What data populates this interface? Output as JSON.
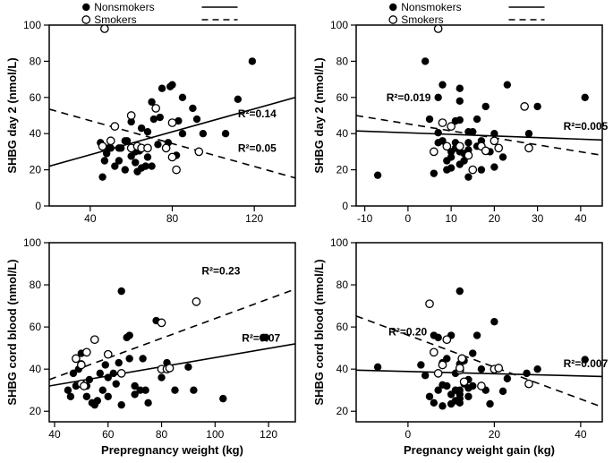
{
  "legend": {
    "nonsmokers_label": "Nonsmokers",
    "smokers_label": "Smokers",
    "nonsmokers_marker": "filled-circle",
    "smokers_marker": "open-circle",
    "nonsmokers_line": "solid",
    "smokers_line": "dashed"
  },
  "marker_size": 4.2,
  "colors": {
    "background": "#ffffff",
    "axis": "#000000",
    "filled": "#000000",
    "open_stroke": "#000000",
    "open_fill": "#ffffff",
    "solid_line": "#000000",
    "dashed_line": "#000000",
    "text": "#000000"
  },
  "panels": {
    "top_left": {
      "xlabel": "Prepregnancy weight (kg)",
      "ylabel": "SHBG day 2 (nmol/L)",
      "xlim": [
        20,
        140
      ],
      "xticks": [
        40,
        80,
        120
      ],
      "ylim": [
        0,
        100
      ],
      "yticks": [
        0,
        20,
        40,
        60,
        80,
        100
      ],
      "r2_solid": "R²=0.14",
      "r2_solid_pos": [
        112,
        49
      ],
      "r2_dashed": "R²=0.05",
      "r2_dashed_pos": [
        112,
        30
      ],
      "line_solid": {
        "x1": 20,
        "y1": 22,
        "x2": 140,
        "y2": 60
      },
      "line_dashed": {
        "x1": 20,
        "y1": 53.5,
        "x2": 140,
        "y2": 15.5
      },
      "nonsmokers": [
        [
          45,
          35
        ],
        [
          46,
          16
        ],
        [
          47,
          25
        ],
        [
          48,
          29
        ],
        [
          49,
          32
        ],
        [
          50,
          32
        ],
        [
          52,
          22
        ],
        [
          54,
          25
        ],
        [
          54,
          32
        ],
        [
          55,
          32
        ],
        [
          57,
          20
        ],
        [
          57,
          36
        ],
        [
          58,
          36
        ],
        [
          60,
          27.5
        ],
        [
          60,
          46.5
        ],
        [
          62,
          24
        ],
        [
          62,
          30
        ],
        [
          63,
          19
        ],
        [
          64,
          30.5
        ],
        [
          65,
          43
        ],
        [
          65,
          21
        ],
        [
          67,
          22
        ],
        [
          68,
          41
        ],
        [
          68,
          27
        ],
        [
          70,
          22
        ],
        [
          70,
          57.5
        ],
        [
          71,
          48
        ],
        [
          73,
          34
        ],
        [
          74,
          49
        ],
        [
          75,
          65
        ],
        [
          78,
          35
        ],
        [
          79,
          66
        ],
        [
          80,
          67
        ],
        [
          82,
          28
        ],
        [
          83,
          47
        ],
        [
          85,
          40
        ],
        [
          85,
          60
        ],
        [
          90,
          54
        ],
        [
          92,
          48
        ],
        [
          95,
          40
        ],
        [
          106,
          40
        ],
        [
          112,
          59
        ],
        [
          119,
          80
        ]
      ],
      "smokers": [
        [
          46,
          33
        ],
        [
          47,
          98
        ],
        [
          50,
          36
        ],
        [
          52,
          44
        ],
        [
          60,
          32
        ],
        [
          60,
          50
        ],
        [
          63,
          33
        ],
        [
          65,
          32
        ],
        [
          68,
          32
        ],
        [
          72,
          54
        ],
        [
          77,
          32
        ],
        [
          80,
          27
        ],
        [
          80,
          46
        ],
        [
          82,
          20
        ],
        [
          93,
          30
        ]
      ]
    },
    "top_right": {
      "xlabel": "Pregnancy weight gain (kg)",
      "ylabel": "SHBG day 2 (nmol/L)",
      "xlim": [
        -12,
        45
      ],
      "xticks": [
        -10,
        0,
        10,
        20,
        30,
        40
      ],
      "ylim": [
        0,
        100
      ],
      "yticks": [
        0,
        20,
        40,
        60,
        80,
        100
      ],
      "r2_solid": "R²=0.005",
      "r2_solid_pos": [
        36,
        42
      ],
      "r2_dashed": "R²=0.019",
      "r2_dashed_pos": [
        -5,
        58
      ],
      "line_solid": {
        "x1": -12,
        "y1": 41.5,
        "x2": 45,
        "y2": 36.5
      },
      "line_dashed": {
        "x1": -12,
        "y1": 50,
        "x2": 45,
        "y2": 28
      },
      "nonsmokers": [
        [
          -7,
          17
        ],
        [
          4,
          80
        ],
        [
          5,
          48
        ],
        [
          6,
          18
        ],
        [
          7,
          35
        ],
        [
          7,
          40.5
        ],
        [
          7,
          60
        ],
        [
          8,
          36
        ],
        [
          8,
          67
        ],
        [
          9,
          20
        ],
        [
          9,
          25
        ],
        [
          9,
          33
        ],
        [
          10,
          21
        ],
        [
          10,
          30
        ],
        [
          10,
          27
        ],
        [
          11,
          32
        ],
        [
          11,
          35
        ],
        [
          11,
          47
        ],
        [
          12,
          23
        ],
        [
          12,
          30
        ],
        [
          12,
          47.5
        ],
        [
          12,
          58
        ],
        [
          12,
          65
        ],
        [
          13,
          25
        ],
        [
          13,
          29
        ],
        [
          14,
          16
        ],
        [
          14,
          31
        ],
        [
          14,
          35
        ],
        [
          14,
          41
        ],
        [
          15,
          20
        ],
        [
          15,
          41
        ],
        [
          16,
          33
        ],
        [
          16,
          48
        ],
        [
          17,
          20
        ],
        [
          17,
          36
        ],
        [
          18,
          55
        ],
        [
          19,
          30
        ],
        [
          20,
          21.5
        ],
        [
          20,
          40
        ],
        [
          22,
          27
        ],
        [
          23,
          67
        ],
        [
          28,
          40
        ],
        [
          30,
          55
        ],
        [
          41,
          60
        ]
      ],
      "smokers": [
        [
          6,
          30
        ],
        [
          7,
          98
        ],
        [
          8,
          46
        ],
        [
          9,
          33
        ],
        [
          10,
          44
        ],
        [
          12,
          33
        ],
        [
          14,
          28
        ],
        [
          15,
          20
        ],
        [
          17,
          33
        ],
        [
          18,
          30.5
        ],
        [
          20,
          36
        ],
        [
          21,
          32
        ],
        [
          27,
          55
        ],
        [
          28,
          32
        ]
      ]
    },
    "bottom_left": {
      "xlabel": "Prepregnancy weight (kg)",
      "ylabel": "SHBG cord blood (nmol/L)",
      "xlim": [
        38,
        130
      ],
      "xticks": [
        40,
        60,
        80,
        100,
        120
      ],
      "ylim": [
        15,
        100
      ],
      "yticks": [
        20,
        40,
        60,
        80,
        100
      ],
      "r2_solid": "R²=0.07",
      "r2_solid_pos": [
        110,
        53
      ],
      "r2_dashed": "R²=0.23",
      "r2_dashed_pos": [
        95,
        85
      ],
      "line_solid": {
        "x1": 38,
        "y1": 32,
        "x2": 130,
        "y2": 52
      },
      "line_dashed": {
        "x1": 38,
        "y1": 35,
        "x2": 130,
        "y2": 78
      },
      "nonsmokers": [
        [
          45,
          30
        ],
        [
          46,
          27
        ],
        [
          47,
          38
        ],
        [
          48,
          32
        ],
        [
          49,
          40
        ],
        [
          50,
          47.5
        ],
        [
          50,
          42.5
        ],
        [
          52,
          27
        ],
        [
          52,
          32
        ],
        [
          53,
          35
        ],
        [
          54,
          24
        ],
        [
          55,
          23
        ],
        [
          56,
          25
        ],
        [
          57,
          38
        ],
        [
          58,
          30
        ],
        [
          59,
          42
        ],
        [
          60,
          27
        ],
        [
          60,
          36
        ],
        [
          62,
          38
        ],
        [
          63,
          33
        ],
        [
          64,
          43
        ],
        [
          65,
          23
        ],
        [
          65,
          77
        ],
        [
          67,
          55
        ],
        [
          68,
          56
        ],
        [
          68,
          45
        ],
        [
          70,
          28
        ],
        [
          70,
          32
        ],
        [
          72,
          30
        ],
        [
          73,
          45
        ],
        [
          74,
          30
        ],
        [
          75,
          24
        ],
        [
          78,
          63
        ],
        [
          80,
          36
        ],
        [
          82,
          43
        ],
        [
          85,
          30
        ],
        [
          90,
          41
        ],
        [
          92,
          30
        ],
        [
          103,
          26
        ],
        [
          118,
          55
        ],
        [
          119,
          55
        ]
      ],
      "smokers": [
        [
          48,
          45
        ],
        [
          50,
          33
        ],
        [
          50,
          42
        ],
        [
          51,
          32
        ],
        [
          52,
          48
        ],
        [
          55,
          54
        ],
        [
          60,
          47
        ],
        [
          65,
          38
        ],
        [
          80,
          40
        ],
        [
          80,
          62
        ],
        [
          82,
          40
        ],
        [
          83,
          40.5
        ],
        [
          93,
          72
        ]
      ]
    },
    "bottom_right": {
      "xlabel": "Pregnancy weight gain (kg)",
      "ylabel": "SHBG cord blood (nmol/L)",
      "xlim": [
        -12,
        45
      ],
      "xticks": [
        0,
        20,
        40
      ],
      "ylim": [
        15,
        100
      ],
      "yticks": [
        20,
        40,
        60,
        80,
        100
      ],
      "r2_solid": "R²=0.007",
      "r2_solid_pos": [
        36,
        41
      ],
      "r2_dashed": "R²=0.20",
      "r2_dashed_pos": [
        -4.5,
        56
      ],
      "line_solid": {
        "x1": -12,
        "y1": 39.5,
        "x2": 45,
        "y2": 36.5
      },
      "line_dashed": {
        "x1": -12,
        "y1": 65.2,
        "x2": 45,
        "y2": 22
      },
      "nonsmokers": [
        [
          -7,
          41
        ],
        [
          3,
          42
        ],
        [
          4,
          37
        ],
        [
          5,
          27
        ],
        [
          6,
          24
        ],
        [
          6,
          56
        ],
        [
          7,
          30
        ],
        [
          7,
          38
        ],
        [
          7,
          55
        ],
        [
          8,
          22.5
        ],
        [
          8,
          32.5
        ],
        [
          8,
          43
        ],
        [
          9,
          32
        ],
        [
          9,
          45
        ],
        [
          10,
          23.5
        ],
        [
          10,
          28
        ],
        [
          10,
          56
        ],
        [
          11,
          25
        ],
        [
          11,
          30
        ],
        [
          11,
          38
        ],
        [
          12,
          24
        ],
        [
          12,
          26
        ],
        [
          12,
          28
        ],
        [
          12,
          30
        ],
        [
          12,
          42.5
        ],
        [
          12,
          77
        ],
        [
          13,
          33
        ],
        [
          13,
          44
        ],
        [
          14,
          27
        ],
        [
          14,
          31
        ],
        [
          14,
          35
        ],
        [
          15,
          32
        ],
        [
          15,
          47.5
        ],
        [
          16,
          56
        ],
        [
          17,
          40
        ],
        [
          18,
          30
        ],
        [
          19,
          23.5
        ],
        [
          20,
          62.5
        ],
        [
          22,
          29.5
        ],
        [
          23,
          35.5
        ],
        [
          27.5,
          38
        ],
        [
          30,
          40
        ],
        [
          41,
          44.5
        ]
      ],
      "smokers": [
        [
          5,
          71
        ],
        [
          6,
          48
        ],
        [
          7,
          38
        ],
        [
          8,
          42
        ],
        [
          9,
          54
        ],
        [
          12,
          39.5
        ],
        [
          12,
          40.5
        ],
        [
          12.5,
          45
        ],
        [
          13,
          34
        ],
        [
          17,
          32
        ],
        [
          20,
          40
        ],
        [
          21,
          40.5
        ],
        [
          28,
          33
        ]
      ]
    }
  }
}
